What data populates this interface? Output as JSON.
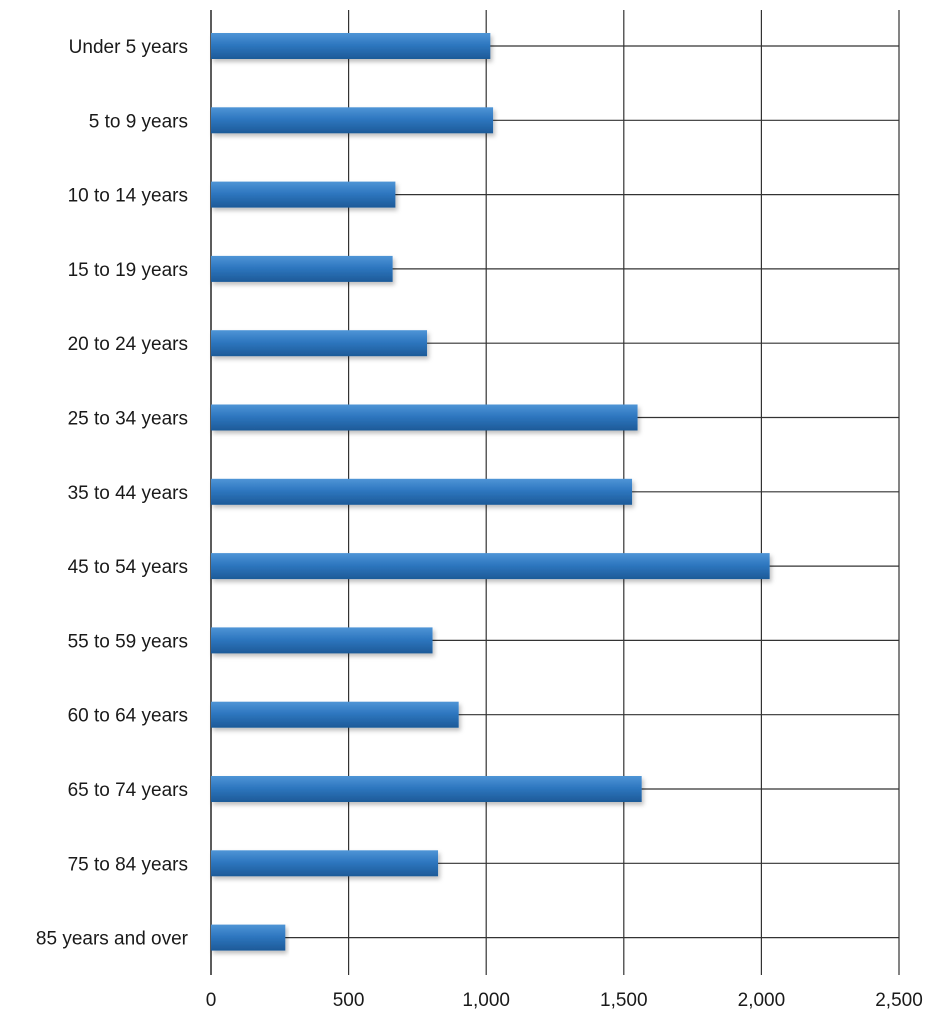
{
  "chart_data": {
    "type": "bar",
    "orientation": "horizontal",
    "categories": [
      "Under 5 years",
      "5 to 9 years",
      "10 to 14 years",
      "15 to 19 years",
      "20 to 24 years",
      "25 to 34 years",
      "35 to 44 years",
      "45 to 54 years",
      "55 to 59 years",
      "60 to 64 years",
      "65 to 74 years",
      "75 to 84 years",
      "85 years and over"
    ],
    "values": [
      1015,
      1025,
      670,
      660,
      785,
      1550,
      1530,
      2030,
      805,
      900,
      1565,
      825,
      270
    ],
    "xlim": [
      0,
      2500
    ],
    "x_ticks": [
      0,
      500,
      1000,
      1500,
      2000,
      2500
    ],
    "x_tick_labels": [
      "0",
      "500",
      "1,000",
      "1,500",
      "2,000",
      "2,500"
    ],
    "title": "",
    "xlabel": "",
    "ylabel": "",
    "grid": true,
    "legend": "none",
    "colors": {
      "bar": "#2e77c0",
      "bar_highlight": "#4f95d6",
      "bar_shadow": "#1d5a98",
      "grid": "#333333",
      "axis": "#222222"
    }
  }
}
